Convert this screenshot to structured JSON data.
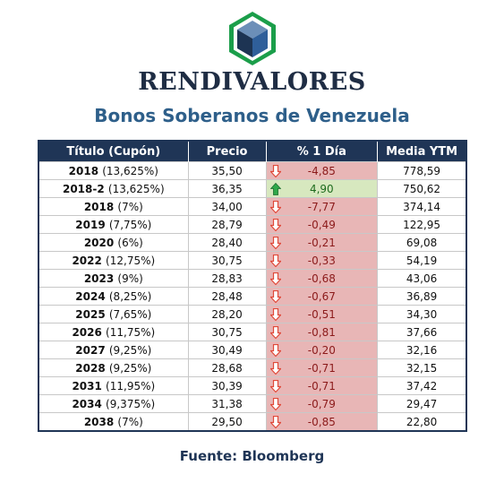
{
  "brand": "RENDIVALORES",
  "subtitle": "Bonos Soberanos de Venezuela",
  "source": "Fuente: Bloomberg",
  "colors": {
    "header_bg": "#1f3556",
    "down_bg": "#e8b6b6",
    "up_bg": "#d7e8bf",
    "down_arrow": "#e04a3a",
    "up_arrow": "#2fa84a"
  },
  "table": {
    "headers": [
      "Título (Cupón)",
      "Precio",
      "% 1 Día",
      "Media YTM"
    ],
    "rows": [
      {
        "year": "2018",
        "coupon": "(13,625%)",
        "price": "35,50",
        "change": "-4,85",
        "direction": "down",
        "ytm": "778,59"
      },
      {
        "year": "2018-2",
        "coupon": "(13,625%)",
        "price": "36,35",
        "change": "4,90",
        "direction": "up",
        "ytm": "750,62"
      },
      {
        "year": "2018",
        "coupon": "(7%)",
        "price": "34,00",
        "change": "-7,77",
        "direction": "down",
        "ytm": "374,14"
      },
      {
        "year": "2019",
        "coupon": "(7,75%)",
        "price": "28,79",
        "change": "-0,49",
        "direction": "down",
        "ytm": "122,95"
      },
      {
        "year": "2020",
        "coupon": "(6%)",
        "price": "28,40",
        "change": "-0,21",
        "direction": "down",
        "ytm": "69,08"
      },
      {
        "year": "2022",
        "coupon": "(12,75%)",
        "price": "30,75",
        "change": "-0,33",
        "direction": "down",
        "ytm": "54,19"
      },
      {
        "year": "2023",
        "coupon": "(9%)",
        "price": "28,83",
        "change": "-0,68",
        "direction": "down",
        "ytm": "43,06"
      },
      {
        "year": "2024",
        "coupon": "(8,25%)",
        "price": "28,48",
        "change": "-0,67",
        "direction": "down",
        "ytm": "36,89"
      },
      {
        "year": "2025",
        "coupon": "(7,65%)",
        "price": "28,20",
        "change": "-0,51",
        "direction": "down",
        "ytm": "34,30"
      },
      {
        "year": "2026",
        "coupon": "(11,75%)",
        "price": "30,75",
        "change": "-0,81",
        "direction": "down",
        "ytm": "37,66"
      },
      {
        "year": "2027",
        "coupon": "(9,25%)",
        "price": "30,49",
        "change": "-0,20",
        "direction": "down",
        "ytm": "32,16"
      },
      {
        "year": "2028",
        "coupon": "(9,25%)",
        "price": "28,68",
        "change": "-0,71",
        "direction": "down",
        "ytm": "32,15"
      },
      {
        "year": "2031",
        "coupon": "(11,95%)",
        "price": "30,39",
        "change": "-0,71",
        "direction": "down",
        "ytm": "37,42"
      },
      {
        "year": "2034",
        "coupon": "(9,375%)",
        "price": "31,38",
        "change": "-0,79",
        "direction": "down",
        "ytm": "29,47"
      },
      {
        "year": "2038",
        "coupon": "(7%)",
        "price": "29,50",
        "change": "-0,85",
        "direction": "down",
        "ytm": "22,80"
      }
    ]
  }
}
